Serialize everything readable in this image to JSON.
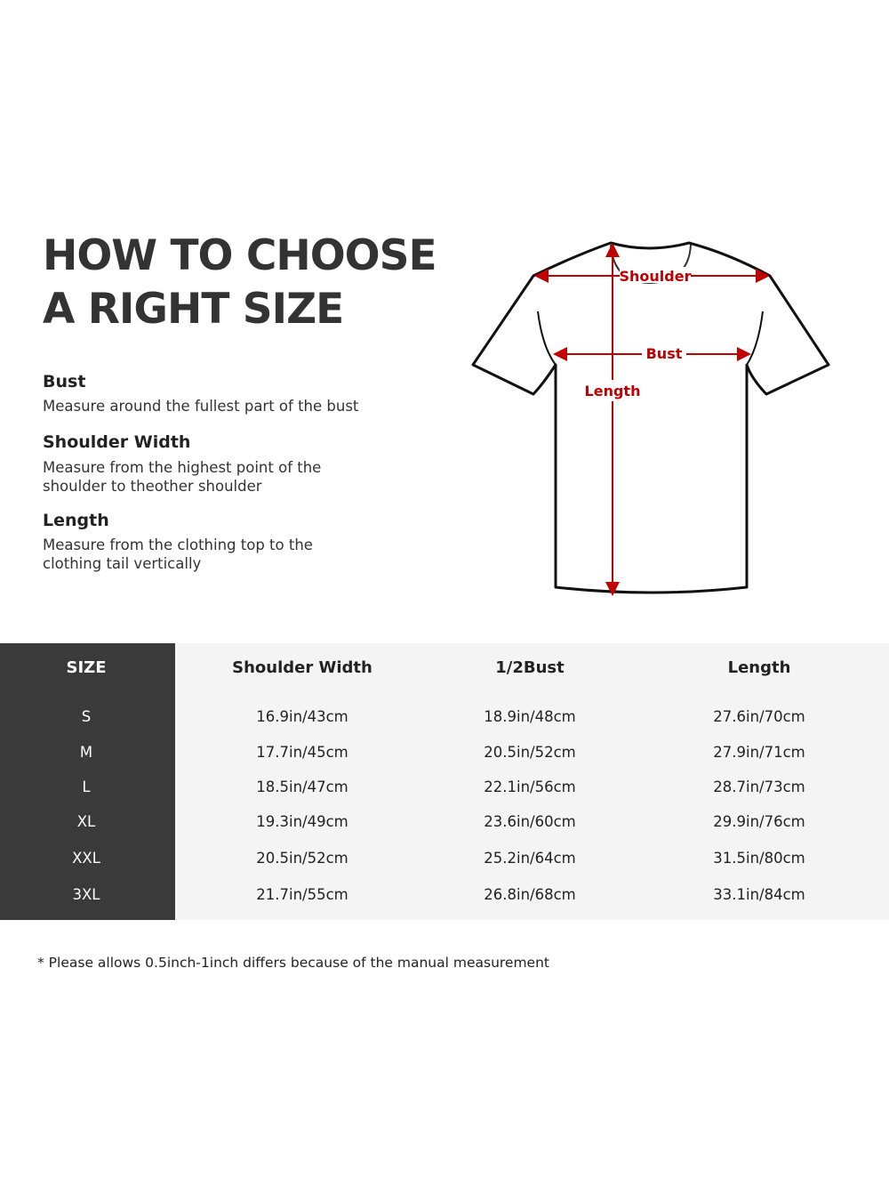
{
  "title_lines": [
    "HOW TO CHOOSE",
    "A RIGHT SIZE"
  ],
  "guide": [
    {
      "heading": "Bust",
      "lines": [
        "Measure around the fullest part of the bust"
      ]
    },
    {
      "heading": "Shoulder Width",
      "lines": [
        "Measure from the highest point of the",
        "shoulder to theother shoulder"
      ]
    },
    {
      "heading": "Length",
      "lines": [
        "Measure from the clothing top to the",
        "clothing tail vertically"
      ]
    }
  ],
  "diagram": {
    "shoulder": "Shoulder",
    "bust": "Bust",
    "length": "Length",
    "arrow_color": "#c00000"
  },
  "table": {
    "headers": [
      "SIZE",
      "Shoulder Width",
      "1/2Bust",
      "Length"
    ],
    "rows": [
      [
        "S",
        "16.9in/43cm",
        "18.9in/48cm",
        "27.6in/70cm"
      ],
      [
        "M",
        "17.7in/45cm",
        "20.5in/52cm",
        "27.9in/71cm"
      ],
      [
        "L",
        "18.5in/47cm",
        "22.1in/56cm",
        "28.7in/73cm"
      ],
      [
        "XL",
        "19.3in/49cm",
        "23.6in/60cm",
        "29.9in/76cm"
      ],
      [
        "XXL",
        "20.5in/52cm",
        "25.2in/64cm",
        "31.5in/80cm"
      ],
      [
        "3XL",
        "21.7in/55cm",
        "26.8in/68cm",
        "33.1in/84cm"
      ]
    ]
  },
  "note": "* Please allows 0.5inch-1inch differs because of the  manual measurement"
}
